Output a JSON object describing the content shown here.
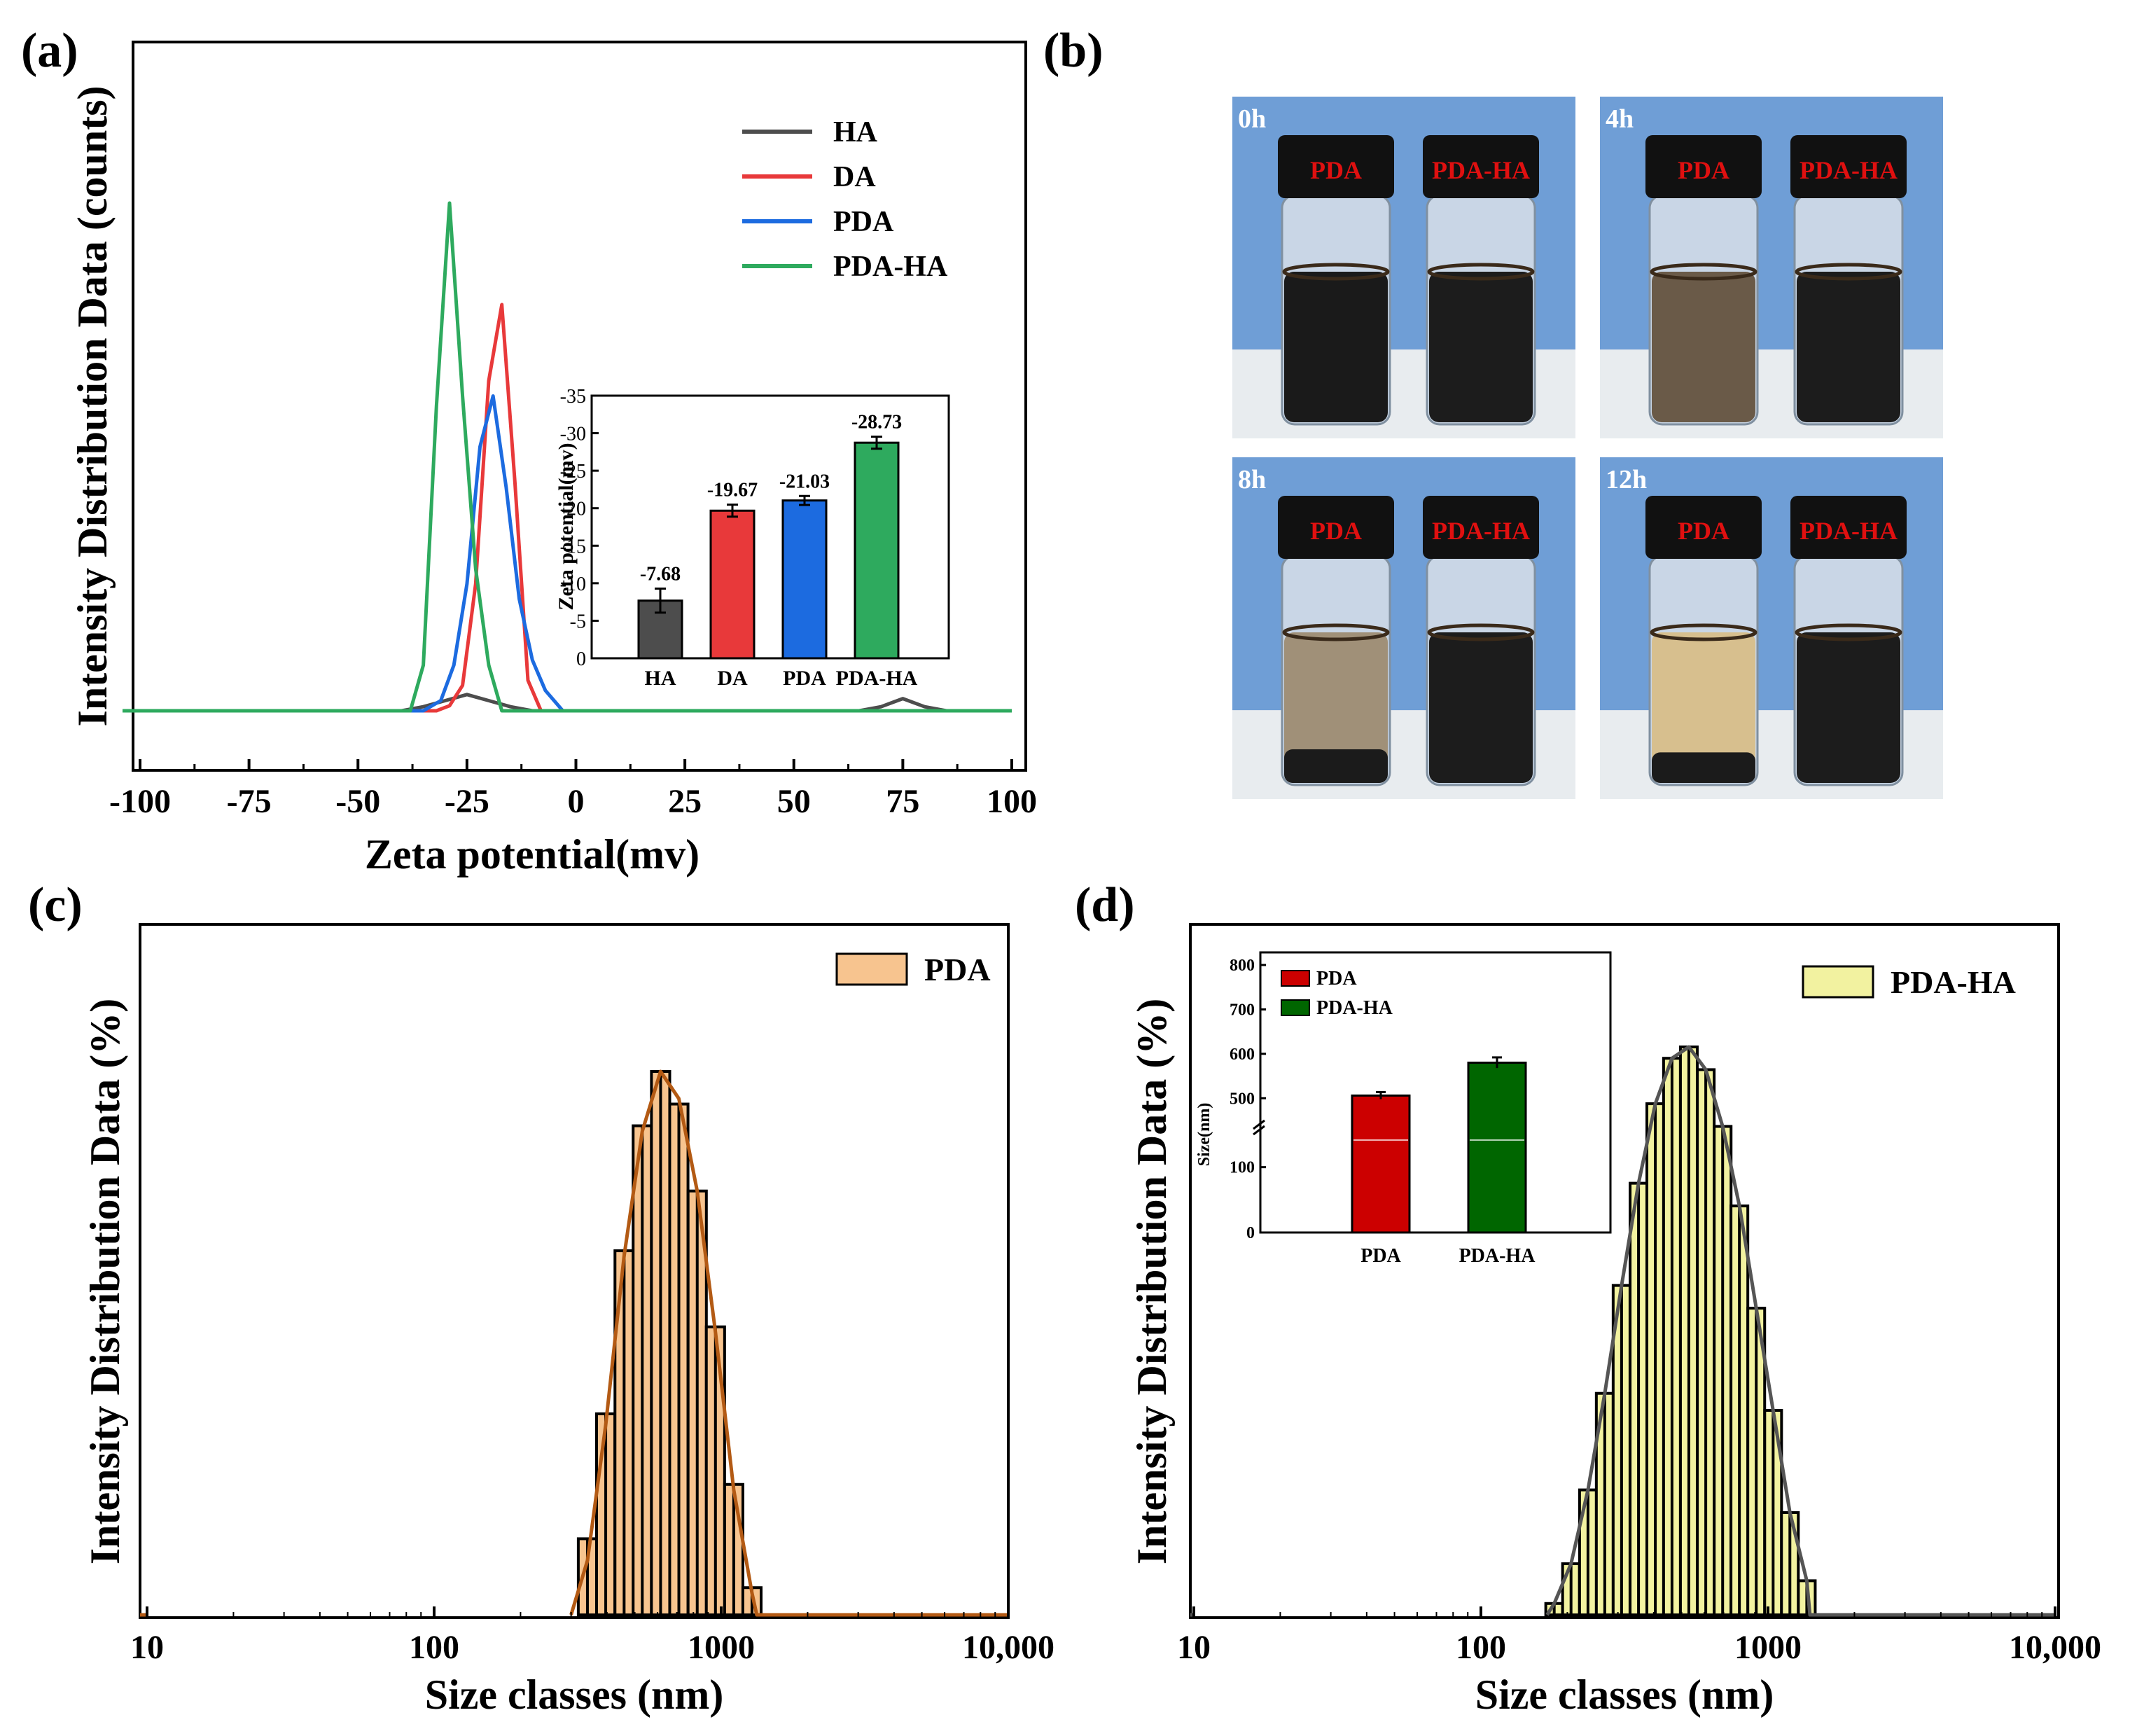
{
  "figure": {
    "panel_labels": [
      "(a)",
      "(b)",
      "(c)",
      "(d)"
    ]
  },
  "chart_data": [
    {
      "id": "a",
      "type": "line",
      "xlabel": "Zeta potential(mv)",
      "ylabel": "Intensity Distribution Data (counts)",
      "xlim": [
        -100,
        100
      ],
      "xticks": [
        "-100",
        "-75",
        "-50",
        "-25",
        "0",
        "25",
        "50",
        "75",
        "100"
      ],
      "ylim": [
        0,
        112
      ],
      "legend": [
        "HA",
        "DA",
        "PDA",
        "PDA-HA"
      ],
      "legend_position": "top-right",
      "series": [
        {
          "name": "HA",
          "color": "#4d4d4d",
          "x": [
            -100,
            -40,
            -35,
            -30,
            -25,
            -20,
            -15,
            -10,
            65,
            70,
            75,
            80,
            85,
            100
          ],
          "y": [
            0,
            0,
            0.8,
            2.0,
            3.2,
            2.0,
            0.8,
            0,
            0,
            0.8,
            2.4,
            0.8,
            0,
            0
          ]
        },
        {
          "name": "DA",
          "color": "#e8393a",
          "x": [
            -100,
            -32,
            -29,
            -26,
            -23,
            -20,
            -17,
            -14,
            -11,
            -8,
            100
          ],
          "y": [
            0,
            0,
            1,
            5,
            25,
            65,
            80,
            45,
            6,
            0,
            0
          ]
        },
        {
          "name": "PDA",
          "color": "#1c6be0",
          "x": [
            -100,
            -35,
            -31,
            -28,
            -25,
            -22,
            -19,
            -16,
            -13,
            -10,
            -7,
            -3,
            100
          ],
          "y": [
            0,
            0,
            2,
            9,
            25,
            52,
            62,
            44,
            22,
            10,
            4,
            0,
            0
          ]
        },
        {
          "name": "PDA-HA",
          "color": "#2eaa5e",
          "x": [
            -100,
            -38,
            -35,
            -32,
            -29,
            -26,
            -23,
            -20,
            -17,
            100
          ],
          "y": [
            0,
            0,
            9,
            60,
            100,
            62,
            28,
            9,
            0,
            0
          ]
        }
      ],
      "inset": {
        "type": "bar",
        "ylabel": "Zeta potential(mv)",
        "categories": [
          "HA",
          "DA",
          "PDA",
          "PDA-HA"
        ],
        "values": [
          -7.68,
          -19.67,
          -21.03,
          -28.73
        ],
        "errors": [
          1.6,
          0.8,
          0.6,
          0.8
        ],
        "data_labels": [
          "-7.68",
          "-19.67",
          "-21.03",
          "-28.73"
        ],
        "colors": [
          "#4d4d4d",
          "#e8393a",
          "#1c6be0",
          "#2eaa5e"
        ],
        "ylim": [
          0,
          -35
        ],
        "yticks": [
          "0",
          "-5",
          "-10",
          "-15",
          "-20",
          "-25",
          "-30",
          "-35"
        ]
      }
    },
    {
      "id": "c",
      "type": "bar",
      "xlabel": "Size classes (nm)",
      "ylabel": "Intensity Distribution Data (%)",
      "xscale": "log",
      "xlim": [
        10,
        10000
      ],
      "xticks": [
        "10",
        "100",
        "1000",
        "10,000"
      ],
      "legend": [
        "PDA"
      ],
      "legend_position": "top-right",
      "fill": "#f7c48f",
      "line_color": "#b35a14",
      "bins": {
        "centers": [
          342,
          396,
          459,
          531,
          615,
          712,
          825,
          955,
          1106,
          1280
        ],
        "values": [
          14,
          37,
          67,
          90,
          100,
          94,
          78,
          53,
          24,
          5
        ]
      },
      "fit_curve": {
        "x": [
          300,
          342,
          396,
          459,
          531,
          615,
          712,
          825,
          955,
          1106,
          1280,
          1330,
          10000
        ],
        "y": [
          0,
          10,
          35,
          66,
          89,
          100,
          95,
          78,
          52,
          23,
          4,
          0,
          0
        ]
      }
    },
    {
      "id": "d",
      "type": "bar",
      "xlabel": "Size classes (nm)",
      "ylabel": "Intensity Distribution Data (%)",
      "xscale": "log",
      "xlim": [
        10,
        10000
      ],
      "xticks": [
        "10",
        "100",
        "1000",
        "10,000"
      ],
      "legend": [
        "PDA-HA"
      ],
      "legend_position": "top-right",
      "fill": "#f2f2a0",
      "line_color": "#555555",
      "bins": {
        "centers": [
          180,
          206,
          236,
          270,
          309,
          354,
          405,
          463,
          530,
          607,
          695,
          795,
          910,
          1042,
          1192,
          1365
        ],
        "values": [
          2,
          9,
          22,
          39,
          58,
          76,
          90,
          98,
          100,
          96,
          86,
          72,
          54,
          36,
          18,
          6
        ]
      },
      "fit_curve": {
        "x": [
          170,
          180,
          206,
          236,
          270,
          309,
          354,
          405,
          463,
          530,
          607,
          695,
          795,
          910,
          1042,
          1192,
          1365,
          1400,
          10000
        ],
        "y": [
          0,
          2,
          9,
          22,
          39,
          58,
          76,
          90,
          98,
          100,
          96,
          86,
          72,
          54,
          36,
          18,
          6,
          0,
          0
        ]
      },
      "inset": {
        "type": "bar",
        "ylabel": "Size(nm)",
        "categories": [
          "PDA",
          "PDA-HA"
        ],
        "values": [
          506,
          580
        ],
        "errors": [
          8,
          12
        ],
        "colors": [
          "#cc0000",
          "#006600"
        ],
        "legend": [
          "PDA",
          "PDA-HA"
        ],
        "yticks": [
          "0",
          "100",
          "500",
          "600",
          "700",
          "800"
        ],
        "axis_break": true
      }
    }
  ],
  "vials": {
    "times": [
      "0h",
      "4h",
      "8h",
      "12h"
    ],
    "left_label": "PDA",
    "right_label": "PDA-HA",
    "left_liquid_colors": [
      "#1a1a1a",
      "#6a5a48",
      "#a09078",
      "#d7bf8e"
    ],
    "right_liquid_color": "#1c1c1c",
    "sediment_heights": [
      0,
      0,
      0.22,
      0.2
    ]
  }
}
